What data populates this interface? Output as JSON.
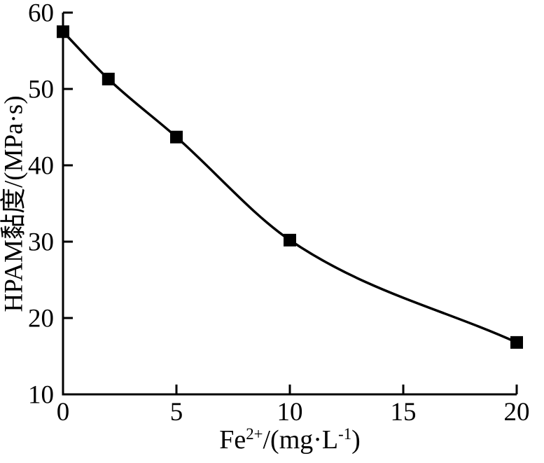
{
  "chart_data": {
    "type": "line",
    "title": "",
    "xlabel": "Fe²⁺/(mg·L⁻¹)",
    "xlabel_parts": [
      {
        "text": "Fe",
        "sup": false
      },
      {
        "text": "2+",
        "sup": true
      },
      {
        "text": "/(mg·L",
        "sup": false
      },
      {
        "text": "-1",
        "sup": true
      },
      {
        "text": ")",
        "sup": false
      }
    ],
    "ylabel": "HPAM黏度/(MPa·s)",
    "x": [
      0,
      2,
      5,
      10,
      20
    ],
    "y": [
      57.5,
      51.3,
      43.7,
      30.2,
      16.8
    ],
    "xlim": [
      0,
      20
    ],
    "ylim": [
      10,
      60
    ],
    "xticks": [
      "0",
      "5",
      "10",
      "15",
      "20"
    ],
    "yticks": [
      "10",
      "20",
      "30",
      "40",
      "50",
      "60"
    ],
    "grid": false,
    "legend": "none",
    "marker": "filled-square",
    "colors": {
      "line": "#000000",
      "marker": "#000000",
      "axis": "#000000",
      "text": "#000000",
      "background": "#ffffff"
    }
  }
}
